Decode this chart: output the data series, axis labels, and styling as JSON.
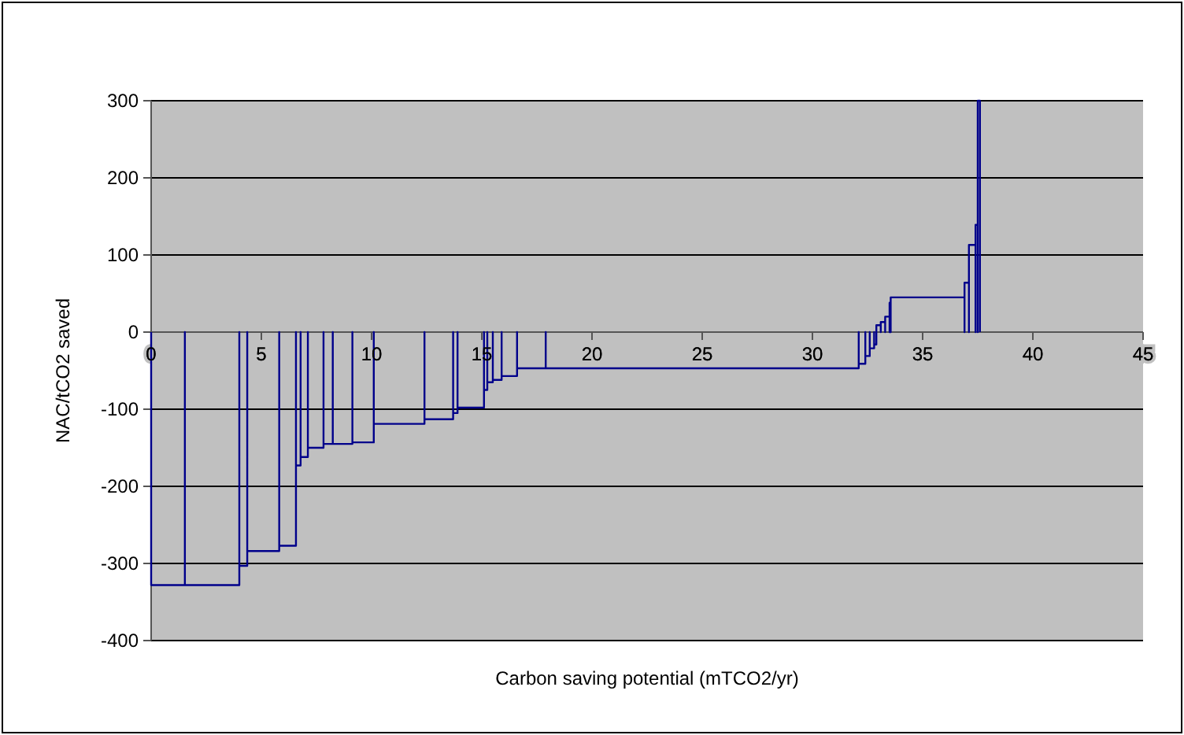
{
  "chart_data": {
    "type": "line",
    "xlabel": "Carbon saving potential (mTCO2/yr)",
    "ylabel": "NAC/tCO2 saved",
    "xlim": [
      0,
      45
    ],
    "xticks": [
      0,
      5,
      10,
      15,
      20,
      25,
      30,
      35,
      40,
      45
    ],
    "ylim": [
      -400,
      300
    ],
    "yticks": [
      -400,
      -300,
      -200,
      -100,
      0,
      100,
      200,
      300
    ],
    "grid": "y",
    "series": [
      {
        "color": "#00008b",
        "x": [
          0,
          0,
          1.53,
          1.53,
          1.53,
          4.0,
          4.0,
          4.0,
          4.36,
          4.36,
          4.36,
          5.81,
          5.81,
          5.81,
          6.57,
          6.57,
          6.57,
          6.78,
          6.78,
          6.78,
          7.11,
          7.11,
          7.11,
          7.82,
          7.82,
          7.82,
          8.24,
          8.24,
          8.24,
          9.13,
          9.13,
          9.13,
          10.1,
          10.1,
          10.1,
          12.4,
          12.4,
          12.4,
          13.7,
          13.7,
          13.7,
          13.9,
          13.9,
          13.9,
          15.1,
          15.1,
          15.1,
          15.25,
          15.25,
          15.25,
          15.5,
          15.5,
          15.5,
          15.9,
          15.9,
          15.9,
          16.6,
          16.6,
          16.6,
          17.9,
          17.9,
          17.9,
          32.1,
          32.1,
          32.1,
          32.4,
          32.4,
          32.4,
          32.6,
          32.6,
          32.6,
          32.8,
          32.8,
          32.8,
          32.9,
          32.9,
          32.9,
          33.1,
          33.1,
          33.1,
          33.3,
          33.3,
          33.3,
          33.5,
          33.5,
          33.5,
          33.55,
          33.55,
          33.55,
          36.9,
          36.9,
          36.9,
          37.1,
          37.1,
          37.1,
          37.4,
          37.4,
          37.4,
          37.5,
          37.5,
          37.5,
          37.6,
          37.6
        ],
        "values": [
          0,
          -328,
          -328,
          0,
          -328,
          -328,
          0,
          -303,
          -303,
          0,
          -284,
          -284,
          0,
          -277,
          -277,
          0,
          -173,
          -173,
          0,
          -162,
          -162,
          0,
          -150,
          -150,
          0,
          -145,
          -145,
          0,
          -145,
          -145,
          0,
          -143,
          -143,
          0,
          -119,
          -119,
          0,
          -113,
          -113,
          0,
          -105,
          -105,
          0,
          -98,
          -98,
          0,
          -75,
          -75,
          0,
          -65,
          -65,
          0,
          -62,
          -62,
          0,
          -57,
          -57,
          0,
          -47,
          -47,
          0,
          -47,
          -47,
          0,
          -41,
          -41,
          0,
          -31,
          -31,
          0,
          -21,
          -21,
          0,
          -16,
          -16,
          0,
          9,
          9,
          0,
          13,
          13,
          0,
          20,
          20,
          0,
          38,
          38,
          0,
          45,
          45,
          0,
          64,
          64,
          0,
          113,
          113,
          0,
          139,
          139,
          0,
          300,
          300,
          0
        ]
      }
    ]
  }
}
